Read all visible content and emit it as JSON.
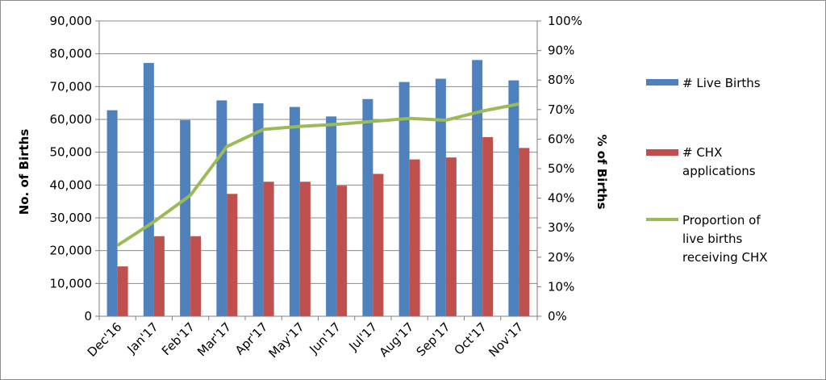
{
  "chart_data": {
    "type": "bar",
    "categories": [
      "Dec'16",
      "Jan'17",
      "Feb'17",
      "Mar'17",
      "Apr'17",
      "May'17",
      "Jun'17",
      "Jul'17",
      "Aug'17",
      "Sep'17",
      "Oct'17",
      "Nov'17"
    ],
    "series": [
      {
        "name": "# Live Births",
        "type": "bar",
        "axis": "left",
        "color": "#4f81bd",
        "values": [
          62800,
          77200,
          59800,
          65800,
          64900,
          63800,
          60900,
          66200,
          71400,
          72400,
          78100,
          71900
        ]
      },
      {
        "name": "# CHX applications",
        "type": "bar",
        "axis": "left",
        "color": "#c0504d",
        "values": [
          15200,
          24400,
          24400,
          37300,
          41000,
          41000,
          39800,
          43400,
          47800,
          48400,
          54600,
          51300
        ]
      },
      {
        "name": "Proportion of live births receiving CHX",
        "type": "line",
        "axis": "right",
        "color": "#9bbb59",
        "values": [
          24,
          32,
          41,
          57.5,
          63.3,
          64.3,
          65,
          66,
          67,
          66.4,
          69.5,
          71.9
        ]
      }
    ],
    "ylabel": "No. of Births",
    "y2label": "% of Births",
    "ylim": [
      0,
      90000
    ],
    "y2lim": [
      0,
      100
    ],
    "yticks": [
      "0",
      "10,000",
      "20,000",
      "30,000",
      "40,000",
      "50,000",
      "60,000",
      "70,000",
      "80,000",
      "90,000"
    ],
    "y2ticks": [
      "0%",
      "10%",
      "20%",
      "30%",
      "40%",
      "50%",
      "60%",
      "70%",
      "80%",
      "90%",
      "100%"
    ],
    "grid": true,
    "legend_placement": "right",
    "legend": {
      "live_births": [
        "# Live Births"
      ],
      "chx": [
        "# CHX",
        "applications"
      ],
      "proportion": [
        "Proportion of",
        "live births",
        "receiving CHX"
      ]
    }
  }
}
